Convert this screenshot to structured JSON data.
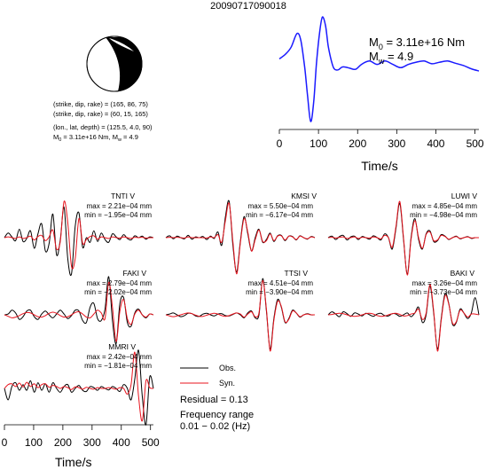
{
  "title": "20090717090018",
  "mechanism": {
    "line1": "(strike, dip, rake) = (165, 86, 75)",
    "line2": "(strike, dip, rake) = (60, 15, 165)",
    "line3": "(lon., lat, depth) = (125.5, 4.0, 90)",
    "line4_prefix": "M",
    "line4_sub0": "0",
    "line4_mid": " = 3.11e+16 Nm, M",
    "line4_subw": "w",
    "line4_tail": " = 4.9"
  },
  "stf": {
    "m0_sym": "M",
    "m0_sub": "0",
    "m0_val": " = 3.11e+16 Nm",
    "mw_sym": "M",
    "mw_sub": "w",
    "mw_val": " = 4.9",
    "xlabel": "Time/s",
    "xticks": [
      "0",
      "100",
      "200",
      "300",
      "400",
      "500"
    ]
  },
  "legend": {
    "obs": "Obs.",
    "syn": "Syn.",
    "residual": "Residual = 0.13",
    "freq1": "Frequency range",
    "freq2": "0.01 − 0.02 (Hz)"
  },
  "bottom_axis": {
    "xlabel": "Time/s",
    "xticks": [
      "0",
      "100",
      "200",
      "300",
      "400",
      "500"
    ]
  },
  "colors": {
    "obs": "#000000",
    "syn": "#e8141e",
    "stf": "#1a1aff"
  },
  "chart_data": [
    {
      "type": "line",
      "name": "source-time-function",
      "xlim": [
        0,
        510
      ],
      "x": [
        0,
        15,
        30,
        45,
        55,
        65,
        72,
        80,
        88,
        95,
        103,
        110,
        118,
        125,
        133,
        140,
        150,
        160,
        170,
        180,
        195,
        210,
        230,
        250,
        270,
        290,
        310,
        330,
        350,
        370,
        390,
        410,
        430,
        450,
        470,
        490,
        510
      ],
      "y": [
        0.22,
        0.3,
        0.43,
        0.68,
        0.55,
        0.05,
        -0.45,
        -0.92,
        -0.55,
        0.15,
        0.7,
        0.98,
        0.82,
        0.45,
        0.18,
        0.04,
        0.02,
        0.07,
        0.07,
        0.05,
        0.03,
        0.12,
        0.18,
        0.12,
        0.18,
        0.12,
        0.06,
        0.12,
        0.16,
        0.18,
        0.13,
        0.16,
        0.18,
        0.14,
        0.1,
        0.04,
        0.0
      ],
      "xlabel": "Time/s"
    },
    {
      "type": "line",
      "station": "TNTI V",
      "max": "max = 2.21e−04 mm",
      "min": "min = −1.95e−04 mm",
      "obs": [
        0.0,
        0.12,
        0.02,
        -0.08,
        0.22,
        -0.1,
        -0.02,
        0.18,
        -0.28,
        0.1,
        0.36,
        -0.35,
        -0.15,
        0.62,
        -0.45,
        -0.05,
        0.8,
        -0.55,
        -0.95,
        0.3,
        0.65,
        -0.25,
        0.0,
        -0.12,
        0.18,
        -0.1,
        0.12,
        -0.05,
        -0.12,
        0.1,
        0.02,
        -0.05,
        0.08,
        -0.02,
        -0.06,
        0.05,
        0.0,
        0.04,
        -0.04,
        0.02,
        0.0
      ],
      "syn": [
        0.0,
        0.02,
        0.0,
        -0.02,
        0.02,
        -0.02,
        0.0,
        0.04,
        -0.06,
        0.03,
        0.06,
        -0.08,
        0.02,
        0.2,
        -0.3,
        -0.1,
        0.95,
        0.4,
        -0.75,
        -0.55,
        0.5,
        -0.15,
        -0.05,
        0.03,
        0.05,
        -0.04,
        0.02,
        0.0,
        -0.02,
        0.02,
        0.0,
        -0.01,
        0.02,
        0.0,
        -0.02,
        0.01,
        0.0,
        0.01,
        -0.01,
        0.0,
        0.0
      ]
    },
    {
      "type": "line",
      "station": "KMSI V",
      "max": "max = 5.50e−04 mm",
      "min": "min = −6.17e−04 mm",
      "obs": [
        0.0,
        0.05,
        -0.03,
        0.04,
        0.0,
        -0.03,
        0.06,
        -0.04,
        0.02,
        0.0,
        0.03,
        -0.05,
        0.04,
        -0.02,
        0.15,
        -0.2,
        0.55,
        0.95,
        -0.2,
        -0.9,
        -0.1,
        0.55,
        0.1,
        -0.35,
        0.0,
        0.22,
        -0.12,
        -0.05,
        0.12,
        -0.1,
        0.05,
        0.06,
        -0.08,
        0.04,
        0.03,
        -0.06,
        0.05,
        0.0,
        -0.04,
        0.03,
        0.0
      ],
      "syn": [
        0.0,
        0.01,
        0.0,
        0.01,
        0.0,
        -0.01,
        0.02,
        0.0,
        0.0,
        0.0,
        0.0,
        -0.01,
        0.02,
        0.0,
        0.08,
        -0.12,
        0.45,
        0.9,
        -0.1,
        -0.95,
        -0.15,
        0.5,
        0.15,
        -0.35,
        -0.05,
        0.2,
        -0.1,
        -0.08,
        0.1,
        -0.08,
        0.04,
        0.05,
        -0.06,
        0.04,
        0.02,
        -0.05,
        0.04,
        0.0,
        -0.03,
        0.02,
        0.0
      ]
    },
    {
      "type": "line",
      "station": "LUWI V",
      "max": "max = 4.85e−04 mm",
      "min": "min = −4.98e−04 mm",
      "obs": [
        0.0,
        0.04,
        -0.05,
        0.03,
        0.06,
        -0.06,
        0.02,
        0.04,
        -0.05,
        0.03,
        0.0,
        -0.04,
        0.05,
        0.0,
        -0.06,
        0.1,
        0.0,
        -0.3,
        0.25,
        0.9,
        -0.05,
        -0.95,
        0.0,
        0.5,
        -0.05,
        -0.3,
        0.1,
        0.18,
        -0.1,
        -0.08,
        0.08,
        0.04,
        -0.05,
        0.0,
        0.04,
        -0.03,
        0.0,
        0.03,
        -0.02,
        0.0,
        0.0
      ],
      "syn": [
        0.0,
        0.01,
        -0.01,
        0.01,
        0.02,
        -0.02,
        0.0,
        0.02,
        -0.02,
        0.01,
        0.0,
        -0.01,
        0.02,
        0.0,
        -0.03,
        0.06,
        0.0,
        -0.25,
        0.3,
        0.95,
        0.0,
        -0.98,
        -0.05,
        0.45,
        0.0,
        -0.28,
        0.08,
        0.15,
        -0.08,
        -0.06,
        0.06,
        0.03,
        -0.04,
        0.0,
        0.03,
        -0.02,
        0.0,
        0.02,
        -0.01,
        0.0,
        0.0
      ]
    },
    {
      "type": "line",
      "station": "FAKI V",
      "max": "max = 2.79e−04 mm",
      "min": "min = −2.02e−04 mm",
      "obs": [
        0.0,
        0.02,
        0.12,
        0.05,
        -0.12,
        -0.05,
        0.1,
        0.12,
        -0.05,
        -0.12,
        0.02,
        0.1,
        0.0,
        -0.08,
        0.02,
        0.12,
        0.02,
        -0.1,
        -0.02,
        0.12,
        0.1,
        -0.15,
        -0.2,
        0.2,
        0.3,
        -0.1,
        -0.15,
        0.15,
        1.0,
        -0.15,
        -0.75,
        0.3,
        0.45,
        -0.2,
        -0.3,
        0.05,
        0.15,
        0.0,
        -0.08,
        0.02,
        0.0
      ],
      "syn": [
        0.0,
        -0.04,
        -0.08,
        -0.06,
        -0.02,
        0.03,
        0.06,
        0.05,
        0.0,
        -0.05,
        -0.06,
        -0.02,
        0.04,
        0.07,
        0.04,
        -0.02,
        -0.06,
        -0.05,
        0.0,
        0.06,
        0.08,
        0.02,
        -0.06,
        -0.08,
        0.02,
        0.12,
        0.05,
        -0.1,
        0.85,
        0.2,
        -0.7,
        0.1,
        0.4,
        -0.1,
        -0.25,
        0.02,
        0.12,
        0.0,
        -0.06,
        0.02,
        0.0
      ]
    },
    {
      "type": "line",
      "station": "TTSI V",
      "max": "max = 4.51e−04 mm",
      "min": "min = −3.90e−04 mm",
      "obs": [
        0.0,
        0.02,
        0.05,
        0.0,
        -0.05,
        -0.02,
        0.04,
        0.03,
        -0.03,
        -0.04,
        0.02,
        0.04,
        0.0,
        -0.03,
        0.02,
        0.03,
        -0.02,
        -0.03,
        0.01,
        0.05,
        0.0,
        -0.08,
        0.05,
        0.1,
        -0.08,
        0.0,
        0.95,
        0.1,
        -0.9,
        -0.1,
        0.4,
        0.2,
        -0.2,
        -0.1,
        0.12,
        0.05,
        -0.06,
        0.0,
        0.03,
        0.0,
        0.0
      ],
      "syn": [
        0.0,
        -0.03,
        -0.05,
        -0.03,
        0.0,
        0.03,
        0.05,
        0.03,
        -0.01,
        -0.04,
        -0.04,
        -0.01,
        0.02,
        0.04,
        0.02,
        -0.02,
        -0.04,
        -0.02,
        0.02,
        0.05,
        0.02,
        -0.06,
        0.02,
        0.08,
        -0.05,
        0.05,
        0.9,
        0.15,
        -0.95,
        -0.15,
        0.35,
        0.22,
        -0.18,
        -0.12,
        0.1,
        0.05,
        -0.05,
        0.0,
        0.02,
        0.0,
        0.0
      ]
    },
    {
      "type": "line",
      "station": "BAKI V",
      "max": "max = 3.26e−04 mm",
      "min": "min = −3.73e−04 mm",
      "obs": [
        0.0,
        0.08,
        0.02,
        -0.05,
        0.08,
        0.03,
        -0.04,
        0.05,
        0.02,
        -0.03,
        0.04,
        0.0,
        -0.04,
        0.02,
        0.04,
        -0.02,
        -0.03,
        0.03,
        0.02,
        -0.04,
        0.0,
        0.05,
        -0.05,
        0.05,
        0.2,
        -0.2,
        0.0,
        0.75,
        0.05,
        -0.9,
        -0.1,
        0.55,
        0.3,
        -0.25,
        -0.2,
        0.15,
        0.05,
        -0.1,
        0.05,
        0.45,
        0.0
      ],
      "syn": [
        0.0,
        0.01,
        0.03,
        0.04,
        0.03,
        0.0,
        -0.03,
        -0.04,
        -0.03,
        0.0,
        0.03,
        0.04,
        0.02,
        -0.02,
        -0.04,
        -0.03,
        0.0,
        0.03,
        0.04,
        0.01,
        -0.03,
        -0.02,
        0.02,
        0.05,
        0.15,
        -0.12,
        0.05,
        0.8,
        0.1,
        -0.95,
        -0.15,
        0.5,
        0.28,
        -0.22,
        -0.18,
        0.12,
        0.05,
        -0.06,
        0.02,
        0.02,
        0.0
      ]
    },
    {
      "type": "line",
      "station": "MMRI V",
      "xlabel": "Time/s",
      "xlim": [
        0,
        510
      ],
      "max": "max = 2.42e−04 mm",
      "min": "min = −1.81e−04 mm",
      "obs": [
        0.0,
        -0.3,
        0.05,
        0.15,
        -0.05,
        0.1,
        -0.05,
        0.2,
        -0.1,
        0.15,
        -0.05,
        0.12,
        -0.1,
        0.15,
        0.0,
        -0.1,
        0.05,
        0.1,
        -0.1,
        0.0,
        0.08,
        -0.05,
        -0.08,
        0.05,
        0.02,
        -0.05,
        0.05,
        0.0,
        -0.04,
        0.05,
        0.0,
        -0.08,
        0.1,
        0.0,
        -0.3,
        0.25,
        1.0,
        -0.2,
        -0.95,
        0.3,
        0.0
      ],
      "syn": [
        0.0,
        0.1,
        0.12,
        0.05,
        0.14,
        0.04,
        0.16,
        0.05,
        0.12,
        0.02,
        0.1,
        0.12,
        0.03,
        0.08,
        0.05,
        0.0,
        0.05,
        0.02,
        -0.03,
        0.04,
        0.02,
        -0.02,
        0.03,
        0.0,
        -0.02,
        0.02,
        0.0,
        0.0,
        0.02,
        0.0,
        -0.02,
        0.02,
        0.0,
        -0.15,
        0.1,
        0.95,
        -0.2,
        -0.85,
        0.2,
        0.02,
        0.0
      ]
    }
  ]
}
